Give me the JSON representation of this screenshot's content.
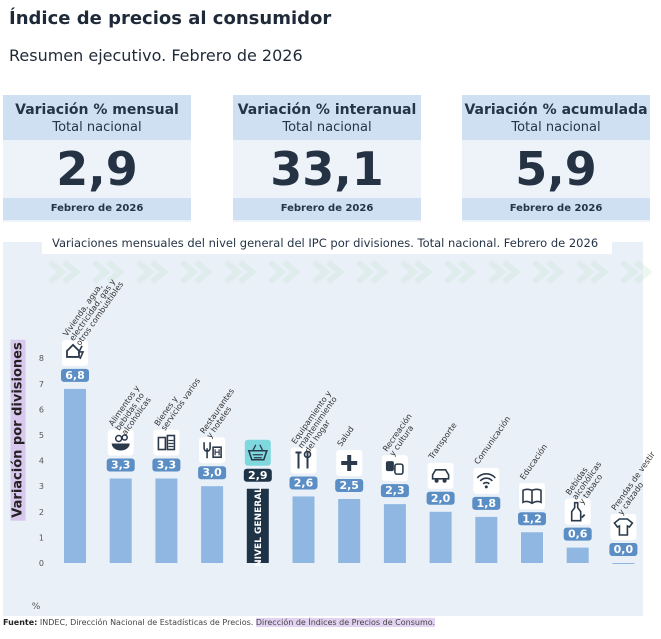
{
  "header": {
    "title": "Índice de precios al consumidor",
    "subtitle": "Resumen ejecutivo. Febrero de 2026"
  },
  "cards": [
    {
      "label": "Variación % mensual",
      "sub": "Total nacional",
      "value": "2,9",
      "footer": "Febrero de 2026"
    },
    {
      "label": "Variación % interanual",
      "sub": "Total nacional",
      "value": "33,1",
      "footer": "Febrero de 2026"
    },
    {
      "label": "Variación % acumulada",
      "sub": "Total nacional",
      "value": "5,9",
      "footer": "Febrero de 2026"
    }
  ],
  "chart_data": {
    "type": "bar",
    "title": "Variaciones mensuales del nivel general del IPC por divisiones. Total nacional. Febrero de 2026",
    "ylabel": "Variación por divisiones",
    "yunit": "%",
    "ylim": [
      0,
      8
    ],
    "yticks": [
      "0",
      "1",
      "2",
      "3",
      "4",
      "5",
      "6",
      "7",
      "8"
    ],
    "grid": false,
    "highlight_color": "#1f3347",
    "bar_color": "#8fb7e1",
    "categories": [
      {
        "name": "Vivienda, agua, electricidad, gas y otros combustibles",
        "lines": [
          "Vivienda, agua,",
          "electricidad, gas y",
          "otros combustibles"
        ],
        "value": 6.8,
        "label": "6,8",
        "icon": "house-bolt-icon"
      },
      {
        "name": "Alimentos y bebidas no alcohólicas",
        "lines": [
          "Alimentos y",
          "bebidas no",
          "alcohólicas"
        ],
        "value": 3.3,
        "label": "3,3",
        "icon": "food-bowl-icon"
      },
      {
        "name": "Bienes y servicios varios",
        "lines": [
          "Bienes y",
          "servicios varios"
        ],
        "value": 3.3,
        "label": "3,3",
        "icon": "toiletries-icon"
      },
      {
        "name": "Restaurantes y hoteles",
        "lines": [
          "Restaurantes",
          "y hoteles"
        ],
        "value": 3.0,
        "label": "3,0",
        "icon": "restaurant-hotel-icon"
      },
      {
        "name": "NIVEL GENERAL",
        "lines": [],
        "value": 2.9,
        "label": "2,9",
        "icon": "shopping-basket-icon",
        "highlight": true,
        "bar_text": "NIVEL GENERAL"
      },
      {
        "name": "Equipamiento y mantenimiento del hogar",
        "lines": [
          "Equipamiento y",
          "mantenimiento",
          "del hogar"
        ],
        "value": 2.6,
        "label": "2,6",
        "icon": "tools-icon"
      },
      {
        "name": "Salud",
        "lines": [
          "Salud"
        ],
        "value": 2.5,
        "label": "2,5",
        "icon": "health-cross-icon"
      },
      {
        "name": "Recreación y cultura",
        "lines": [
          "Recreación",
          "y cultura"
        ],
        "value": 2.3,
        "label": "2,3",
        "icon": "theater-masks-icon"
      },
      {
        "name": "Transporte",
        "lines": [
          "Transporte"
        ],
        "value": 2.0,
        "label": "2,0",
        "icon": "car-icon"
      },
      {
        "name": "Comunicación",
        "lines": [
          "Comunicación"
        ],
        "value": 1.8,
        "label": "1,8",
        "icon": "wifi-icon"
      },
      {
        "name": "Educación",
        "lines": [
          "Educación"
        ],
        "value": 1.2,
        "label": "1,2",
        "icon": "book-icon"
      },
      {
        "name": "Bebidas alcohólicas y tabaco",
        "lines": [
          "Bebidas",
          "alcohólicas",
          "y tabaco"
        ],
        "value": 0.6,
        "label": "0,6",
        "icon": "bottle-icon"
      },
      {
        "name": "Prendas de vestir y calzado",
        "lines": [
          "Prendas de vestir",
          "y calzado"
        ],
        "value": 0.0,
        "label": "0,0",
        "icon": "tshirt-icon"
      }
    ]
  },
  "source": {
    "label": "Fuente:",
    "text": " INDEC, Dirección Nacional de Estadísticas de Precios. ",
    "highlight": "Dirección de Índices de Precios de Consumo."
  }
}
